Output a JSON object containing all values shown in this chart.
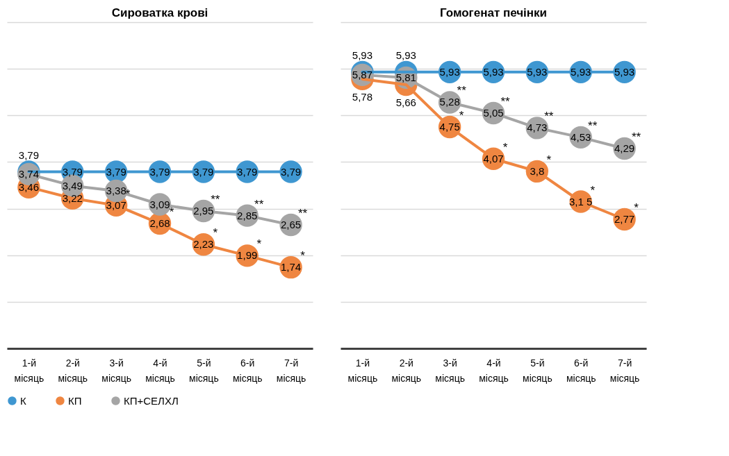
{
  "chart_data": [
    {
      "type": "line",
      "title": "Сироватка крові",
      "categories": [
        "1-й місяць",
        "2-й місяць",
        "3-й місяць",
        "4-й місяць",
        "5-й місяць",
        "6-й місяць",
        "7-й місяць"
      ],
      "series": [
        {
          "name": "К",
          "color": "#3f97d1",
          "values": [
            3.79,
            3.79,
            3.79,
            3.79,
            3.79,
            3.79,
            3.79
          ],
          "value_labels": [
            "3,79",
            "3,79",
            "3,79",
            "3,79",
            "3,79",
            "3,79",
            "3,79"
          ]
        },
        {
          "name": "КП",
          "color": "#ef8641",
          "values": [
            3.46,
            3.22,
            3.07,
            2.68,
            2.23,
            1.99,
            1.74
          ],
          "value_labels": [
            "3,46",
            "3,22",
            "3,07",
            "2,68",
            "2,23",
            "1,99",
            "1,74"
          ]
        },
        {
          "name": "КП+СЕЛХЛ",
          "color": "#a5a5a5",
          "values": [
            3.74,
            3.49,
            3.38,
            3.09,
            2.95,
            2.85,
            2.65
          ],
          "value_labels": [
            "3,74",
            "3,49",
            "3,38",
            "3,09",
            "2,95",
            "2,85",
            "2,65"
          ]
        }
      ],
      "ylim": [
        0,
        7
      ],
      "yticks": [
        {
          "value": 0,
          "label": null
        },
        {
          "value": 1,
          "label": null
        },
        {
          "value": 2,
          "label": null
        },
        {
          "value": 3,
          "label": null
        },
        {
          "value": 4,
          "label": null
        },
        {
          "value": 5,
          "label": null
        },
        {
          "value": 6,
          "label": null
        },
        {
          "value": 7,
          "label": null
        }
      ],
      "tick_labels": "x",
      "grid": "y",
      "legend": "bottom",
      "marker": "circle",
      "line_style": "solid",
      "annotations": [
        {
          "text": "*",
          "x": "3-й місяць",
          "y": 3.07
        },
        {
          "text": "*",
          "x": "4-й місяць",
          "y": 2.68
        },
        {
          "text": "*",
          "x": "5-й місяць",
          "y": 2.23
        },
        {
          "text": "*",
          "x": "6-й місяць",
          "y": 1.99
        },
        {
          "text": "*",
          "x": "7-й місяць",
          "y": 1.74
        },
        {
          "text": "**",
          "x": "5-й місяць",
          "y": 2.95
        },
        {
          "text": "**",
          "x": "6-й місяць",
          "y": 2.85
        },
        {
          "text": "**",
          "x": "7-й місяць",
          "y": 2.65
        }
      ]
    },
    {
      "type": "line",
      "title": "Гомогенат печінки",
      "categories": [
        "1-й місяць",
        "2-й місяць",
        "3-й місяць",
        "4-й місяць",
        "5-й місяць",
        "6-й місяць",
        "7-й місяць"
      ],
      "series": [
        {
          "name": "К",
          "color": "#3f97d1",
          "values": [
            5.93,
            5.93,
            5.93,
            5.93,
            5.93,
            5.93,
            5.93
          ],
          "value_labels": [
            "5,93",
            "5,93",
            "5,93",
            "5,93",
            "5,93",
            "5,93",
            "5,93"
          ]
        },
        {
          "name": "КП",
          "color": "#ef8641",
          "values": [
            5.78,
            5.66,
            4.75,
            4.07,
            3.8,
            3.15,
            2.77
          ],
          "value_labels": [
            "5,78",
            "5,66",
            "4,75",
            "4,07",
            "3,8",
            "3,1 5",
            "2,77"
          ]
        },
        {
          "name": "КП+СЕЛХЛ",
          "color": "#a5a5a5",
          "values": [
            5.87,
            5.81,
            5.28,
            5.05,
            4.73,
            4.53,
            4.29
          ],
          "value_labels": [
            "5,87",
            "5,81",
            "5,28",
            "5,05",
            "4,73",
            "4,53",
            "4,29"
          ]
        }
      ],
      "ylim": [
        0,
        7
      ],
      "yticks": [
        {
          "value": 0,
          "label": null
        },
        {
          "value": 1,
          "label": null
        },
        {
          "value": 2,
          "label": null
        },
        {
          "value": 3,
          "label": null
        },
        {
          "value": 4,
          "label": null
        },
        {
          "value": 5,
          "label": null
        },
        {
          "value": 6,
          "label": null
        },
        {
          "value": 7,
          "label": null
        }
      ],
      "tick_labels": "x",
      "grid": "y",
      "legend": "bottom",
      "marker": "circle",
      "line_style": "solid",
      "annotations": [
        {
          "text": "*",
          "x": "3-й місяць",
          "y": 4.75
        },
        {
          "text": "*",
          "x": "4-й місяць",
          "y": 4.07
        },
        {
          "text": "*",
          "x": "5-й місяць",
          "y": 3.8
        },
        {
          "text": "*",
          "x": "6-й місяць",
          "y": 3.15
        },
        {
          "text": "*",
          "x": "7-й місяць",
          "y": 2.77
        },
        {
          "text": "**",
          "x": "3-й місяць",
          "y": 5.28
        },
        {
          "text": "**",
          "x": "4-й місяць",
          "y": 5.05
        },
        {
          "text": "**",
          "x": "5-й місяць",
          "y": 4.73
        },
        {
          "text": "**",
          "x": "6-й місяць",
          "y": 4.53
        },
        {
          "text": "**",
          "x": "7-й місяць",
          "y": 4.29
        }
      ]
    }
  ]
}
